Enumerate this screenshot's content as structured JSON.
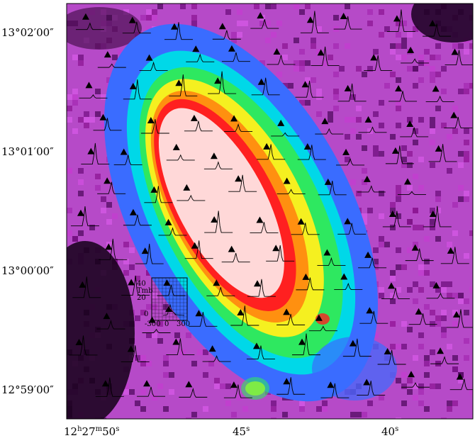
{
  "figure": {
    "y_axis_labels": [
      "13°02′00″",
      "13°01′00″",
      "13°00′00″",
      "12°59′00″"
    ],
    "x_axis_labels": [
      {
        "h": "12",
        "m": "27",
        "s": "50",
        "hs": "h",
        "ms": "m",
        "ss": "s"
      },
      {
        "s": "45",
        "ss": "s"
      },
      {
        "s": "40",
        "ss": "s"
      }
    ],
    "inset": {
      "y_label": "Tmb",
      "y_ticks": [
        "40",
        "20",
        "0"
      ],
      "x_ticks": [
        "-300",
        "0",
        "300"
      ]
    },
    "colors": {
      "colormap": [
        "#000000",
        "#2a0030",
        "#8a1290",
        "#d43ce0",
        "#3a6cff",
        "#00d8e8",
        "#2ee860",
        "#f5f020",
        "#ff9010",
        "#ff2020",
        "#ffd8d8"
      ],
      "marker": "#000000",
      "spectrum_line": "#000000"
    },
    "marker_icon": "triangle-marker-icon"
  }
}
